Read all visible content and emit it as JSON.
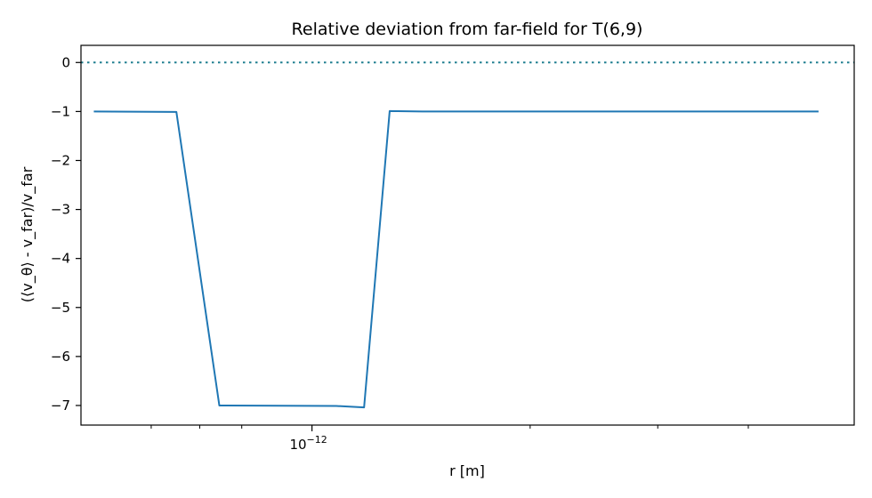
{
  "chart_data": {
    "type": "line",
    "title": "Relative deviation from far-field for T(6,9)",
    "xlabel": "r [m]",
    "ylabel": "⟨v_θ⟩ - v_far)/v_far",
    "ylabel_open": "(",
    "x_scale": "log",
    "x_tick_labels": [
      {
        "value": 1e-12,
        "base": "10",
        "exponent": "−12"
      }
    ],
    "x_minor_ticks": [
      6e-13,
      7e-13,
      8e-13,
      2e-12,
      3e-12,
      4e-12
    ],
    "xlim": [
      4.8e-13,
      5.6e-12
    ],
    "ylim": [
      -7.4,
      0.35
    ],
    "y_ticks": [
      0,
      -1,
      -2,
      -3,
      -4,
      -5,
      -6,
      -7
    ],
    "y_tick_labels": [
      "0",
      "−1",
      "−2",
      "−3",
      "−4",
      "−5",
      "−6",
      "−7"
    ],
    "reference_line": {
      "y": 0,
      "style": "dotted",
      "color": "#1f7f8f"
    },
    "series": [
      {
        "color": "#1f77b4",
        "x": [
          5e-13,
          6.5e-13,
          7.45e-13,
          1.08e-12,
          1.18e-12,
          1.28e-12,
          1.42e-12,
          5e-12
        ],
        "y": [
          -1.0,
          -1.01,
          -7.0,
          -7.01,
          -7.04,
          -0.99,
          -1.0,
          -1.0
        ]
      }
    ],
    "grid": false,
    "legend": "none"
  }
}
